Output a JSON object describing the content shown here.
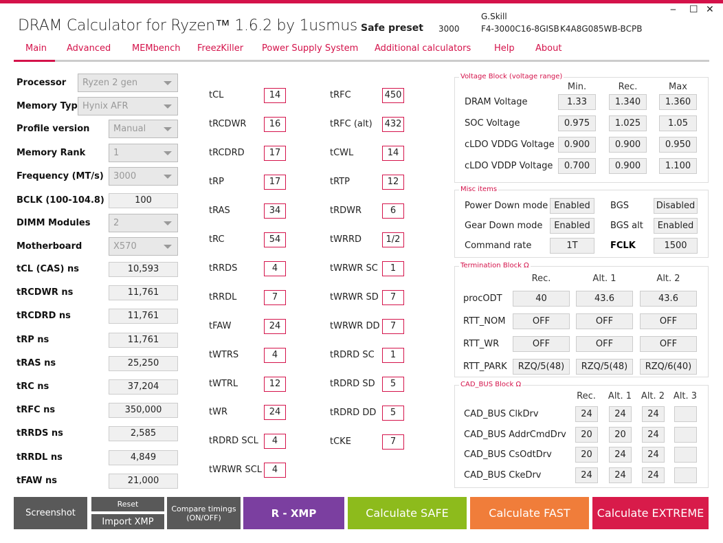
{
  "title": "DRAM Calculator for Ryzen™ 1.6.2 by 1usmus",
  "preset_label": "Safe preset",
  "preset_value": "3000",
  "memory": {
    "vendor": "G.Skill",
    "part": "F4-3000C16-8GISB",
    "chip": "K4A8G085WB-BCPB"
  },
  "window": {
    "minimize": "‒",
    "maximize": "☐",
    "close": "✕"
  },
  "nav": [
    "Main",
    "Advanced",
    "MEMbench",
    "FreezKiller",
    "Power Supply System",
    "Additional calculators",
    "Help",
    "About"
  ],
  "colors": {
    "accent": "#d4124a",
    "xmp": "#7b3fa0",
    "safe": "#8dbb1c",
    "fast": "#f07d3a",
    "extreme": "#d81b4a",
    "gray": "#595959"
  },
  "left": {
    "dropdowns": [
      {
        "label": "Processor",
        "value": "Ryzen 2 gen"
      },
      {
        "label": "Memory Type",
        "value": "Hynix AFR"
      },
      {
        "label": "Profile version",
        "value": "Manual"
      },
      {
        "label": "Memory Rank",
        "value": "1"
      },
      {
        "label": "Frequency (MT/s)",
        "value": "3000"
      },
      {
        "label": "BCLK (100-104.8)",
        "value": "100"
      },
      {
        "label": "DIMM Modules",
        "value": "2"
      },
      {
        "label": "Motherboard",
        "value": "X570"
      }
    ],
    "ns": [
      {
        "label": "tCL (CAS) ns",
        "value": "10,593"
      },
      {
        "label": "tRCDWR ns",
        "value": "11,761"
      },
      {
        "label": "tRCDRD ns",
        "value": "11,761"
      },
      {
        "label": "tRP ns",
        "value": "11,761"
      },
      {
        "label": "tRAS ns",
        "value": "25,250"
      },
      {
        "label": "tRC ns",
        "value": "37,204"
      },
      {
        "label": "tRFC ns",
        "value": "350,000"
      },
      {
        "label": "tRRDS ns",
        "value": "2,585"
      },
      {
        "label": "tRRDL ns",
        "value": "4,849"
      },
      {
        "label": "tFAW ns",
        "value": "21,000"
      }
    ]
  },
  "timings_a": [
    {
      "label": "tCL",
      "value": "14"
    },
    {
      "label": "tRCDWR",
      "value": "16"
    },
    {
      "label": "tRCDRD",
      "value": "17"
    },
    {
      "label": "tRP",
      "value": "17"
    },
    {
      "label": "tRAS",
      "value": "34"
    },
    {
      "label": "tRC",
      "value": "54"
    },
    {
      "label": "tRRDS",
      "value": "4"
    },
    {
      "label": "tRRDL",
      "value": "7"
    },
    {
      "label": "tFAW",
      "value": "24"
    },
    {
      "label": "tWTRS",
      "value": "4"
    },
    {
      "label": "tWTRL",
      "value": "12"
    },
    {
      "label": "tWR",
      "value": "24"
    },
    {
      "label": "tRDRD SCL",
      "value": "4"
    },
    {
      "label": "tWRWR SCL",
      "value": "4"
    }
  ],
  "timings_b": [
    {
      "label": "tRFC",
      "value": "450"
    },
    {
      "label": "tRFC (alt)",
      "value": "432"
    },
    {
      "label": "tCWL",
      "value": "14"
    },
    {
      "label": "tRTP",
      "value": "12"
    },
    {
      "label": "tRDWR",
      "value": "6"
    },
    {
      "label": "tWRRD",
      "value": "1/2"
    },
    {
      "label": "tWRWR SC",
      "value": "1"
    },
    {
      "label": "tWRWR SD",
      "value": "7"
    },
    {
      "label": "tWRWR DD",
      "value": "7"
    },
    {
      "label": "tRDRD SC",
      "value": "1"
    },
    {
      "label": "tRDRD SD",
      "value": "5"
    },
    {
      "label": "tRDRD DD",
      "value": "5"
    },
    {
      "label": "tCKE",
      "value": "7"
    }
  ],
  "voltage": {
    "title": "Voltage Block (voltage range)",
    "headers": [
      "Min.",
      "Rec.",
      "Max"
    ],
    "rows": [
      {
        "label": "DRAM Voltage",
        "values": [
          "1.33",
          "1.340",
          "1.360"
        ]
      },
      {
        "label": "SOC Voltage",
        "values": [
          "0.975",
          "1.025",
          "1.05"
        ]
      },
      {
        "label": "cLDO VDDG Voltage",
        "values": [
          "0.900",
          "0.900",
          "0.950"
        ]
      },
      {
        "label": "cLDO VDDP Voltage",
        "values": [
          "0.700",
          "0.900",
          "1.100"
        ]
      }
    ]
  },
  "misc": {
    "title": "Misc items",
    "rows": [
      {
        "label": "Power Down mode",
        "value": "Enabled",
        "label2": "BGS",
        "value2": "Disabled"
      },
      {
        "label": "Gear Down mode",
        "value": "Enabled",
        "label2": "BGS alt",
        "value2": "Enabled"
      },
      {
        "label": "Command rate",
        "value": "1T",
        "label2": "FCLK",
        "value2": "1500"
      }
    ]
  },
  "termination": {
    "title": "Termination Block Ω",
    "headers": [
      "Rec.",
      "Alt. 1",
      "Alt. 2"
    ],
    "rows": [
      {
        "label": "procODT",
        "values": [
          "40",
          "43.6",
          "43.6"
        ]
      },
      {
        "label": "RTT_NOM",
        "values": [
          "OFF",
          "OFF",
          "OFF"
        ]
      },
      {
        "label": "RTT_WR",
        "values": [
          "OFF",
          "OFF",
          "OFF"
        ]
      },
      {
        "label": "RTT_PARK",
        "values": [
          "RZQ/5(48)",
          "RZQ/5(48)",
          "RZQ/6(40)"
        ]
      }
    ]
  },
  "cadbus": {
    "title": "CAD_BUS Block Ω",
    "headers": [
      "Rec.",
      "Alt. 1",
      "Alt. 2",
      "Alt. 3"
    ],
    "rows": [
      {
        "label": "CAD_BUS ClkDrv",
        "values": [
          "24",
          "24",
          "24",
          ""
        ]
      },
      {
        "label": "CAD_BUS AddrCmdDrv",
        "values": [
          "20",
          "20",
          "24",
          ""
        ]
      },
      {
        "label": "CAD_BUS CsOdtDrv",
        "values": [
          "20",
          "24",
          "24",
          ""
        ]
      },
      {
        "label": "CAD_BUS CkeDrv",
        "values": [
          "24",
          "24",
          "24",
          ""
        ]
      }
    ]
  },
  "buttons": {
    "screenshot": "Screenshot",
    "reset": "Reset",
    "import_xmp": "Import XMP",
    "compare": "Compare timings (ON/OFF)",
    "rxmp": "R - XMP",
    "safe": "Calculate SAFE",
    "fast": "Calculate FAST",
    "extreme": "Calculate EXTREME"
  }
}
